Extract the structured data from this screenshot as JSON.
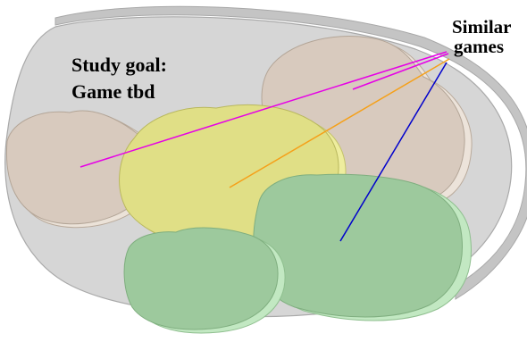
{
  "labels": {
    "study_goal_line1": "Study goal:",
    "study_goal_line2": "Game tbd",
    "similar_line1": "Similar",
    "similar_line2": "games"
  },
  "colors": {
    "outer_disk_top": "#d4d4d4",
    "outer_disk_side": "#bcbcbc",
    "tan_blob": "#d8cabe",
    "tan_blob_side": "#e6ddd3",
    "yellow_blob": "#e0df86",
    "yellow_blob_side": "#ecec9c",
    "green_blob": "#9dc99d",
    "green_blob_side": "#bde2bd",
    "line_magenta": "#e600e6",
    "line_orange": "#f5a019",
    "line_blue": "#0000cc"
  }
}
